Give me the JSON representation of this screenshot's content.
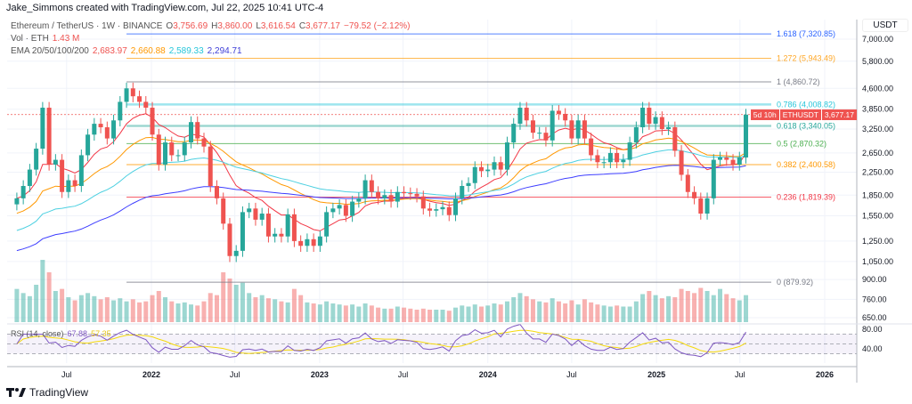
{
  "credit": "Jake_Simmons created with TradingView.com, Jul 22, 2025 10:41 UTC-4",
  "legend": {
    "symbol": "Ethereum / TetherUS · 1W · BINANCE",
    "open_label": "O",
    "open": "3,756.69",
    "high_label": "H",
    "high": "3,860.00",
    "low_label": "L",
    "low": "3,616.54",
    "close_label": "C",
    "close": "3,677.17",
    "change": "−79.52 (−2.12%)",
    "vol_label": "Vol · ETH",
    "vol": "1.43 M",
    "ema_label": "EMA 20/50/100/200",
    "ema20": "2,683.97",
    "ema50": "2,660.88",
    "ema100": "2,589.33",
    "ema200": "2,294.71",
    "rsi_label": "RSI (14, close)",
    "rsi": "67.88",
    "rsi_ma": "57.35"
  },
  "axis_unit": "USDT",
  "last_price": {
    "symbol": "ETHUSDT",
    "price": "3,677.17",
    "countdown": "5d 10h"
  },
  "footer_brand": "TradingView",
  "colors": {
    "up": "#26a69a",
    "down": "#ef5350",
    "ema20": "#f23645",
    "ema50": "#ff9800",
    "ema100": "#4dd0e1",
    "ema200": "#3d3dff",
    "rsi": "#7e57c2",
    "rsi_ma": "#f5d90a"
  },
  "chart_data": {
    "type": "candlestick",
    "scale": "log",
    "interval": "2-week approximation of 1W candles",
    "start_date": "2021-03-15",
    "step_days": 14,
    "closes": [
      1800,
      2000,
      2300,
      2750,
      3900,
      2400,
      2500,
      1900,
      2100,
      2000,
      2600,
      3100,
      3400,
      3300,
      3000,
      3500,
      4100,
      4600,
      4300,
      4100,
      3900,
      3100,
      2400,
      2900,
      2600,
      2600,
      2900,
      3450,
      3000,
      2800,
      2000,
      1800,
      1450,
      1100,
      1150,
      1600,
      1650,
      1500,
      1580,
      1300,
      1330,
      1300,
      1570,
      1250,
      1200,
      1270,
      1200,
      1300,
      1600,
      1650,
      1700,
      1550,
      1750,
      1800,
      2100,
      1900,
      1800,
      1850,
      1750,
      1900,
      1880,
      1870,
      1830,
      1650,
      1620,
      1640,
      1670,
      1560,
      1800,
      2000,
      2050,
      2350,
      2270,
      2300,
      2450,
      2300,
      2900,
      3400,
      3900,
      3500,
      3150,
      3150,
      2950,
      3800,
      3700,
      3500,
      3000,
      3500,
      3000,
      2600,
      2450,
      2450,
      2650,
      2450,
      2500,
      2900,
      3300,
      3900,
      3400,
      3600,
      3250,
      3300,
      2700,
      2200,
      1900,
      1800,
      1580,
      1800,
      2500,
      2550,
      2500,
      2400,
      2550,
      3677.17
    ],
    "volumes_m": [
      3.2,
      2.8,
      2.5,
      3.6,
      6.0,
      4.8,
      3.0,
      3.2,
      2.4,
      2.1,
      2.6,
      2.8,
      2.5,
      2.2,
      2.4,
      2.1,
      2.3,
      2.0,
      2.2,
      1.9,
      2.0,
      2.6,
      3.0,
      2.4,
      2.0,
      1.8,
      1.9,
      1.7,
      1.6,
      2.0,
      2.8,
      2.6,
      4.8,
      4.2,
      3.6,
      3.8,
      2.8,
      2.4,
      2.6,
      2.3,
      2.2,
      2.0,
      1.9,
      3.2,
      2.6,
      1.9,
      1.8,
      1.7,
      2.0,
      1.8,
      1.7,
      1.6,
      1.7,
      1.5,
      1.8,
      1.6,
      1.4,
      1.3,
      1.3,
      1.5,
      1.4,
      1.3,
      1.2,
      1.3,
      1.2,
      1.2,
      1.2,
      1.1,
      1.4,
      1.6,
      1.5,
      1.7,
      1.5,
      1.6,
      1.8,
      1.7,
      2.0,
      2.4,
      2.8,
      2.5,
      2.2,
      2.0,
      1.9,
      2.3,
      2.0,
      1.8,
      2.1,
      1.7,
      2.2,
      1.9,
      1.7,
      1.6,
      1.5,
      1.6,
      1.5,
      1.5,
      2.0,
      2.7,
      3.0,
      2.6,
      2.3,
      2.5,
      2.4,
      3.2,
      3.0,
      2.8,
      3.3,
      3.0,
      2.6,
      3.2,
      2.7,
      2.3,
      2.1,
      2.6,
      1.43
    ],
    "price_ticks": [
      7000,
      5800,
      4600,
      3850,
      3250,
      2650,
      2250,
      1850,
      1550,
      1250,
      1050,
      900,
      760,
      650
    ],
    "rsi_ticks": [
      80,
      40
    ],
    "time_ticks": [
      {
        "label": "Jul",
        "date": "2021-07-01"
      },
      {
        "label": "2022",
        "date": "2022-01-01"
      },
      {
        "label": "Jul",
        "date": "2022-07-01"
      },
      {
        "label": "2023",
        "date": "2023-01-01"
      },
      {
        "label": "Jul",
        "date": "2023-07-01"
      },
      {
        "label": "2024",
        "date": "2024-01-01"
      },
      {
        "label": "Jul",
        "date": "2024-07-01"
      },
      {
        "label": "2025",
        "date": "2025-01-01"
      },
      {
        "label": "Jul",
        "date": "2025-07-01"
      },
      {
        "label": "2026",
        "date": "2026-01-01"
      }
    ],
    "fib_levels": [
      {
        "label": "1.618 (7,320.85)",
        "price": 7320.85,
        "color": "#2962ff"
      },
      {
        "label": "1.272 (5,943.49)",
        "price": 5943.49,
        "color": "#ffa726"
      },
      {
        "label": "1 (4,860.72)",
        "price": 4860.72,
        "color": "#787b86"
      },
      {
        "label": "0.786 (4,008.82)",
        "price": 4008.82,
        "color": "#26c6da"
      },
      {
        "label": "0.618 (3,340.05)",
        "price": 3340.05,
        "color": "#26a69a"
      },
      {
        "label": "0.5 (2,870.32)",
        "price": 2870.32,
        "color": "#4caf50"
      },
      {
        "label": "0.382 (2,400.58)",
        "price": 2400.58,
        "color": "#ff9800"
      },
      {
        "label": "0.236 (1,819.39)",
        "price": 1819.39,
        "color": "#f23645"
      },
      {
        "label": "0 (879.92)",
        "price": 879.92,
        "color": "#787b86"
      }
    ],
    "fib_start_date": "2021-11-08",
    "current_price": 3677.17
  }
}
